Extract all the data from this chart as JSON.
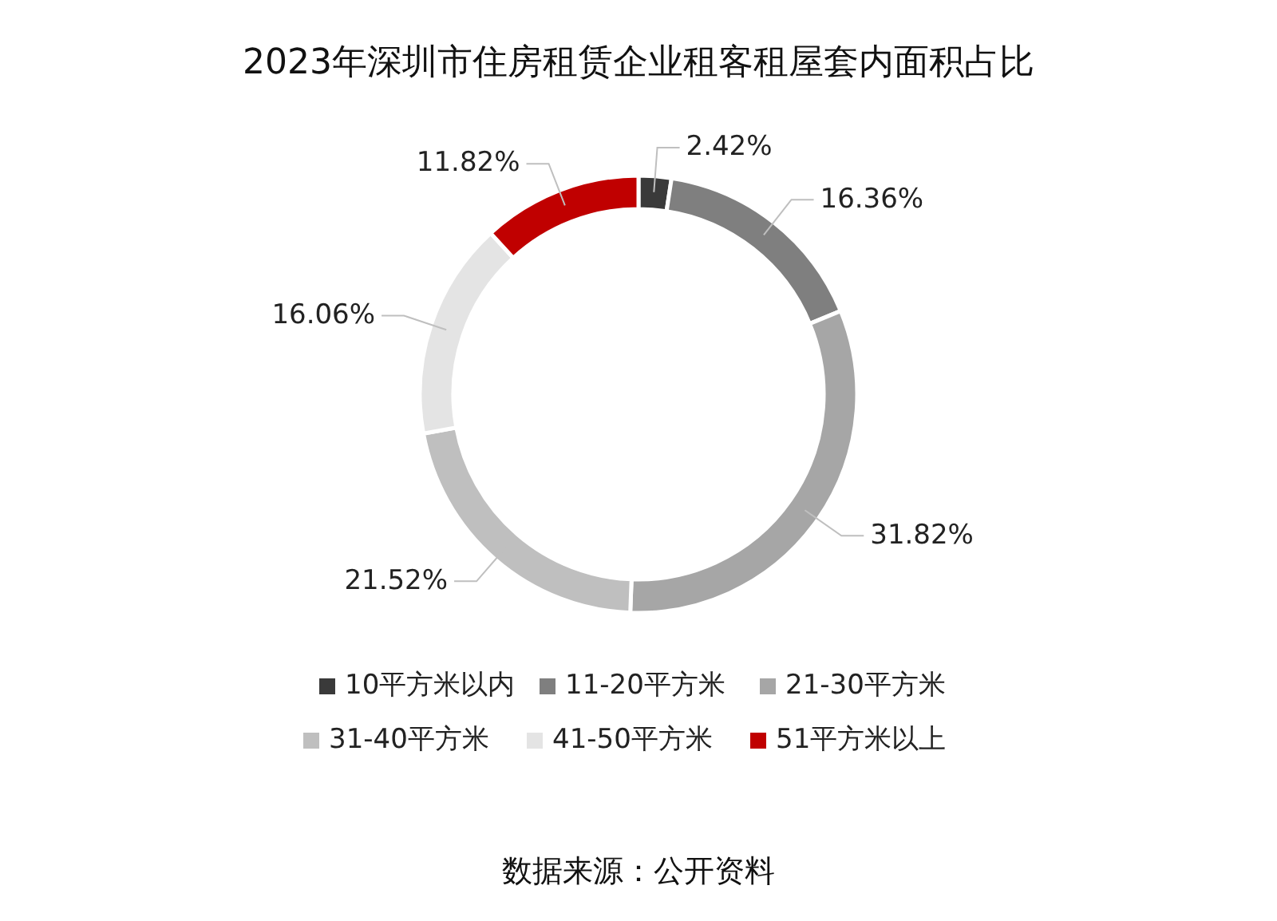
{
  "chart_data": {
    "type": "donut",
    "title": "2023年深圳市住房租赁企业租客租屋套内面积占比",
    "categories": [
      "10平方米以内",
      "11-20平方米",
      "21-30平方米",
      "31-40平方米",
      "41-50平方米",
      "51平方米以上"
    ],
    "values": [
      2.42,
      16.36,
      31.82,
      21.52,
      16.06,
      11.82
    ],
    "colors": [
      "#3a3a3a",
      "#7f7f7f",
      "#a6a6a6",
      "#bfbfbf",
      "#e4e4e4",
      "#c00000"
    ],
    "value_labels": [
      "2.42%",
      "16.36%",
      "31.82%",
      "21.52%",
      "16.06%",
      "11.82%"
    ],
    "legend": "bottom",
    "annotations": [
      "数据来源：公开资料"
    ]
  }
}
